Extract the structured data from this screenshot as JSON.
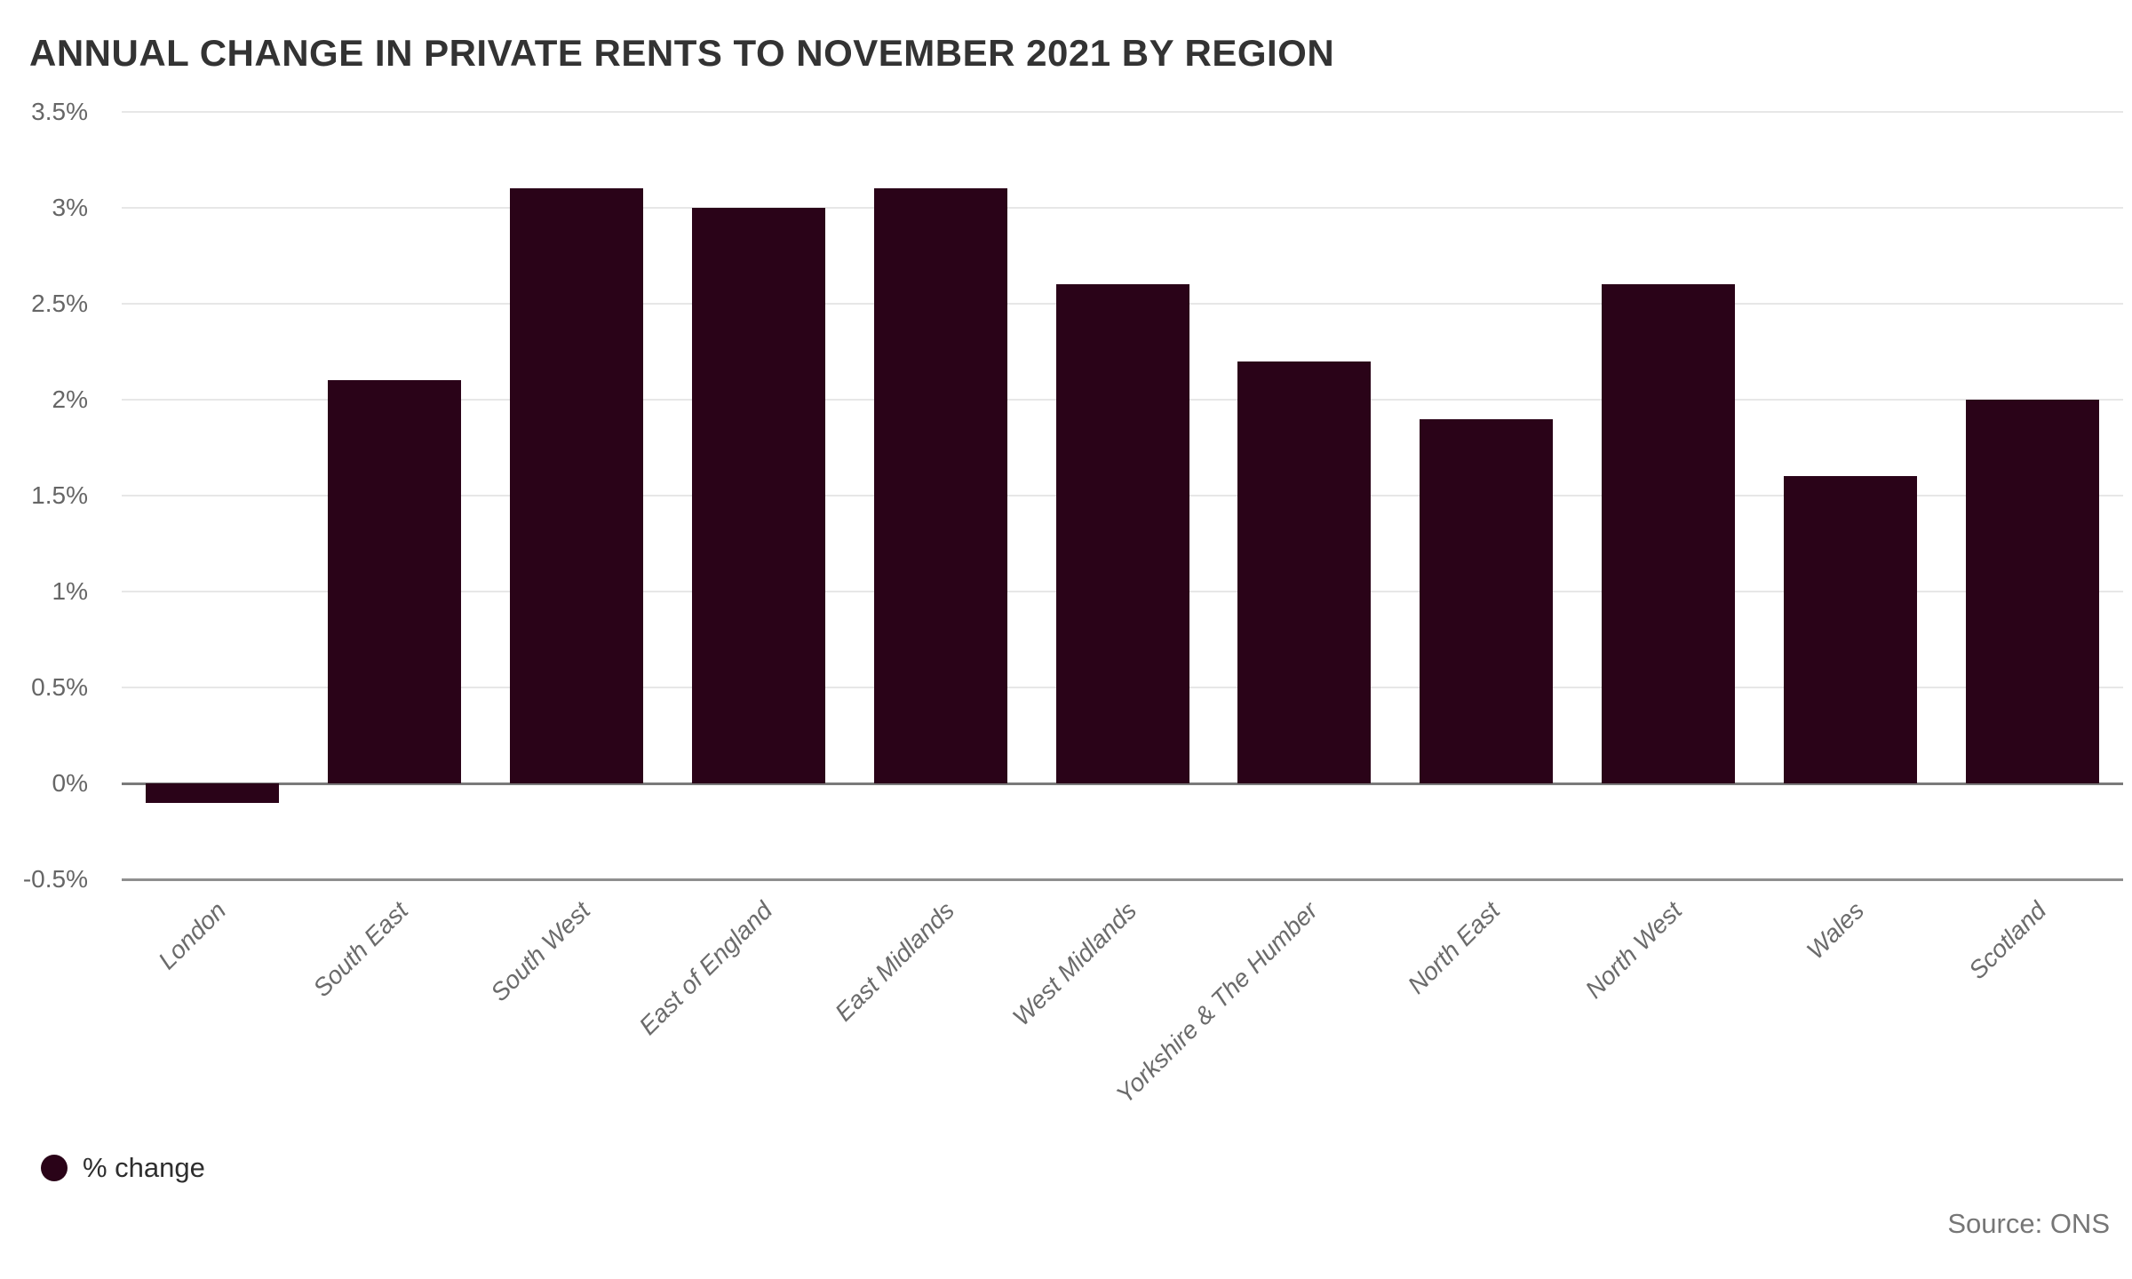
{
  "title": "ANNUAL CHANGE IN PRIVATE RENTS TO NOVEMBER 2021 BY REGION",
  "source": "Source: ONS",
  "legend": {
    "label": "% change",
    "swatch_color": "#2a0318"
  },
  "colors": {
    "bar": "#2a0318",
    "title_text": "#333333",
    "axis_text": "#666666",
    "x_label_text": "#6b6b6b",
    "gridline": "#e7e7e7",
    "zero_line": "#7a7a7a",
    "base_line": "#8f8f8f",
    "source_text": "#767676",
    "background": "#ffffff"
  },
  "chart_data": {
    "type": "bar",
    "title": "ANNUAL CHANGE IN PRIVATE RENTS TO NOVEMBER 2021 BY REGION",
    "categories": [
      "London",
      "South East",
      "South West",
      "East of England",
      "East Midlands",
      "West Midlands",
      "Yorkshire & The Humber",
      "North East",
      "North West",
      "Wales",
      "Scotland"
    ],
    "series": [
      {
        "name": "% change",
        "values": [
          -0.1,
          2.1,
          3.1,
          3.0,
          3.1,
          2.6,
          2.2,
          1.9,
          2.6,
          1.6,
          2.0
        ]
      }
    ],
    "unit": "%",
    "xlabel": "",
    "ylabel": "",
    "ylim": [
      -0.5,
      3.5
    ],
    "yticks": [
      3.5,
      3,
      2.5,
      2,
      1.5,
      1,
      0.5,
      0,
      -0.5
    ],
    "ytick_labels": [
      "3.5%",
      "3%",
      "2.5%",
      "2%",
      "1.5%",
      "1%",
      "0.5%",
      "0%",
      "-0.5%"
    ],
    "grid": true,
    "zero_line": true,
    "x_label_rotation_deg": -45,
    "legend_position": "bottom-left",
    "source": "Source: ONS"
  }
}
